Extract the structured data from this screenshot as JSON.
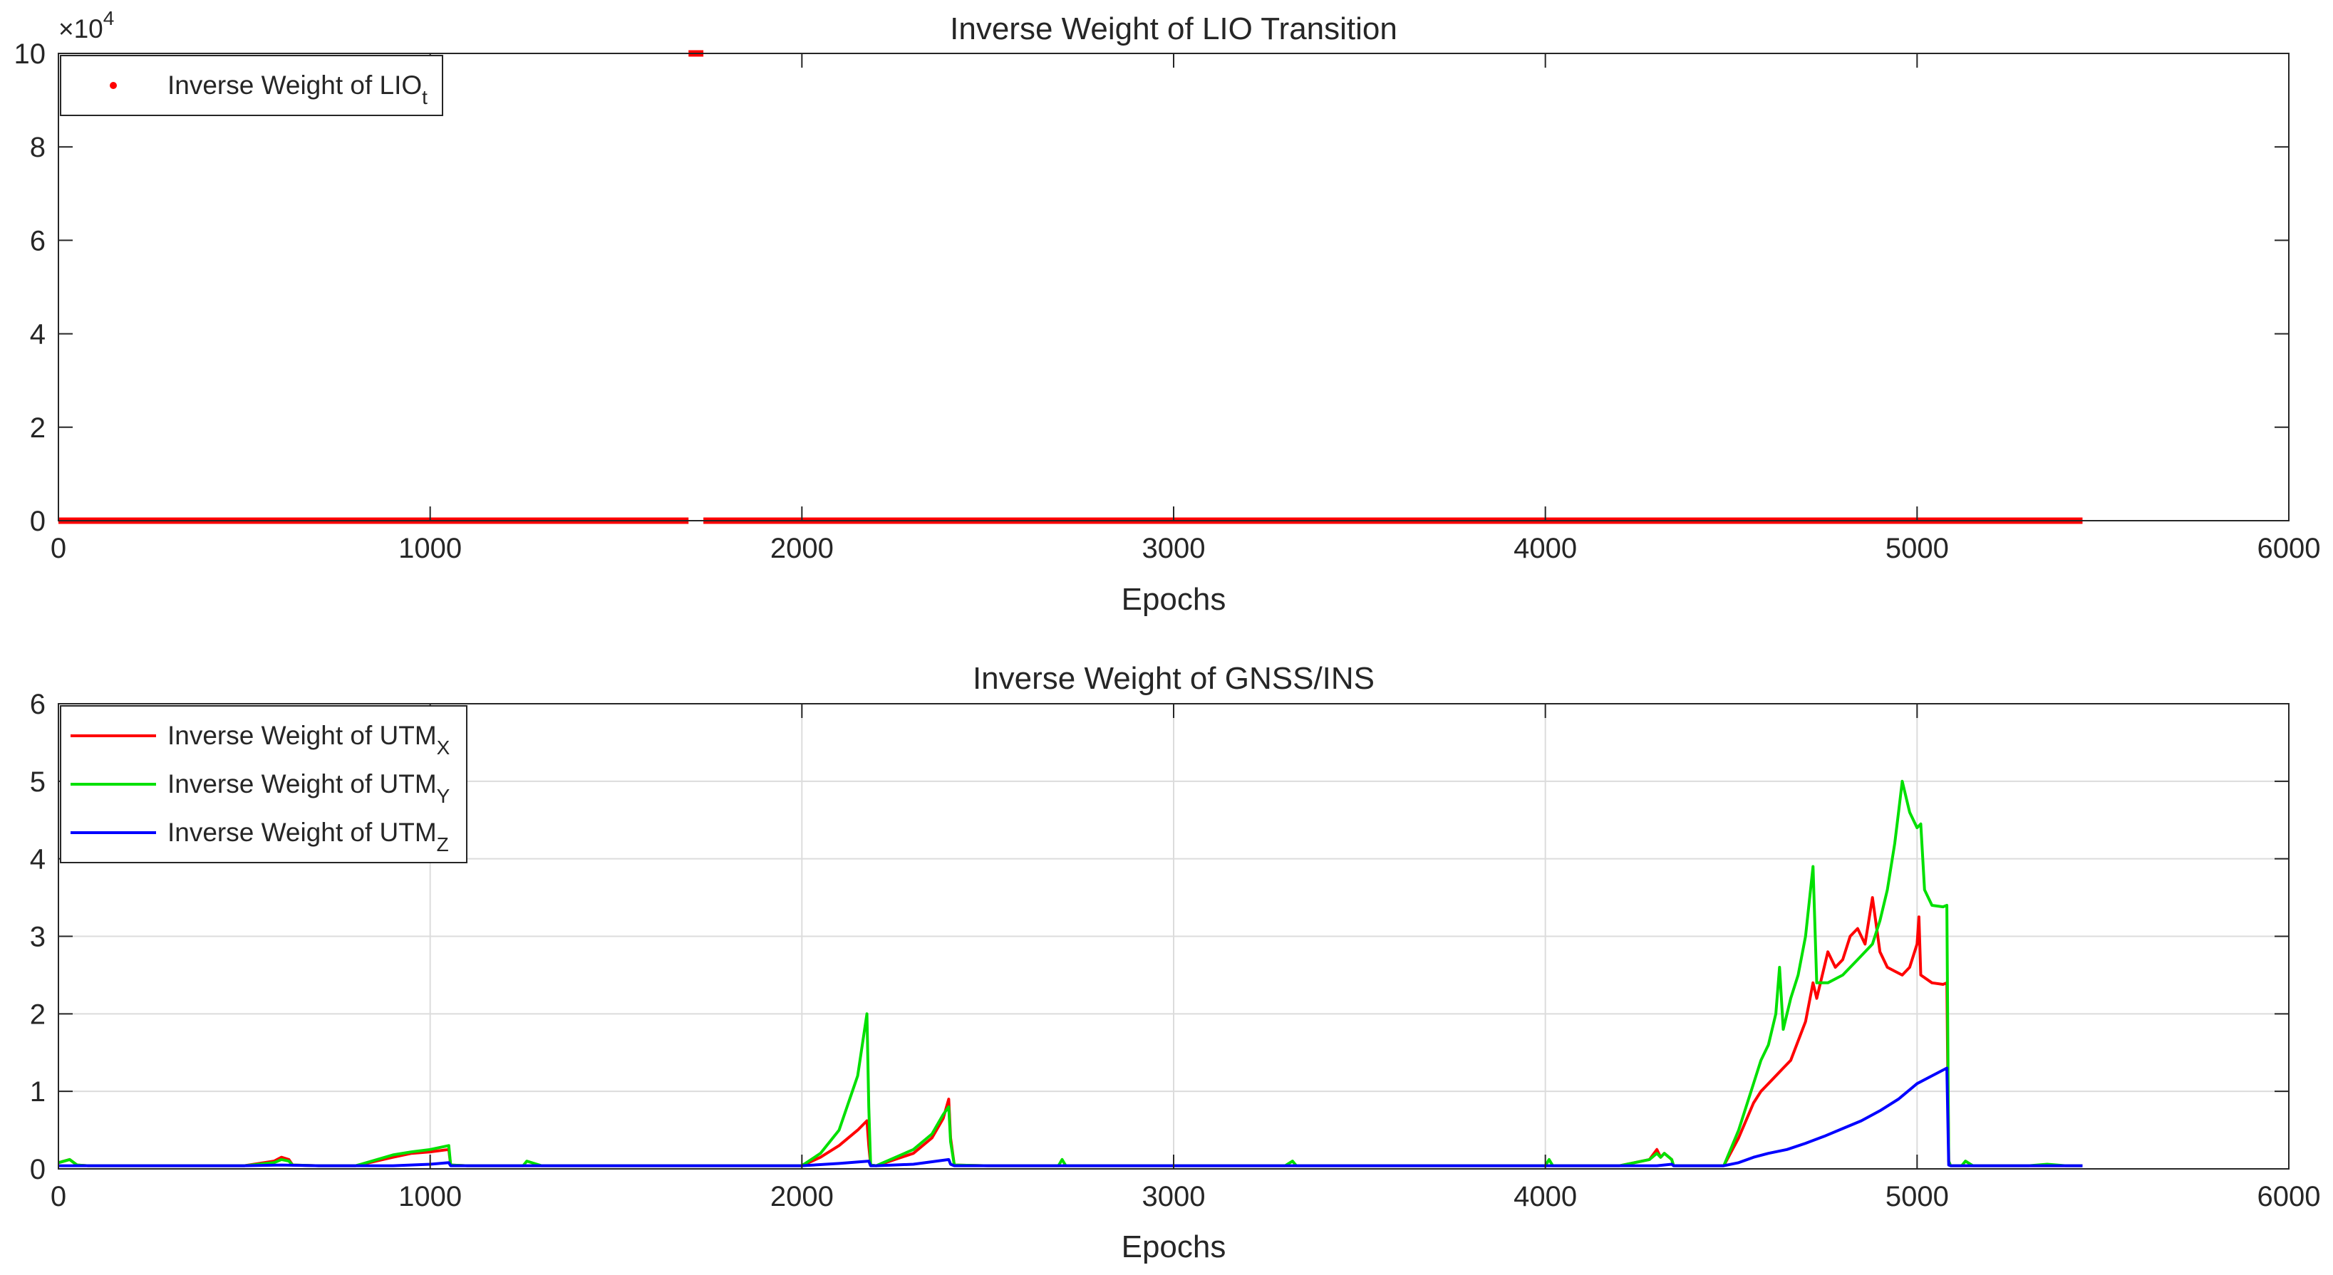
{
  "chart_data": [
    {
      "type": "scatter",
      "title": "Inverse Weight of LIO Transition",
      "xlabel": "Epochs",
      "ylabel": "",
      "xlim": [
        0,
        6000
      ],
      "ylim": [
        0,
        100000
      ],
      "x_ticks": [
        "0",
        "1000",
        "2000",
        "3000",
        "4000",
        "5000",
        "6000"
      ],
      "y_ticks": [
        "0",
        "2",
        "4",
        "6",
        "8",
        "10"
      ],
      "y_exponent_base": "×10",
      "y_exponent_power": "4",
      "grid": false,
      "legend_position": "top-left",
      "series": [
        {
          "name": "Inverse Weight of LIO",
          "name_subscript": "t",
          "color": "#ff0000",
          "segments": [
            {
              "x_start": 0,
              "x_end": 1695,
              "y": 0
            },
            {
              "x_start": 1695,
              "x_end": 1735,
              "y": 100000
            },
            {
              "x_start": 1735,
              "x_end": 5445,
              "y": 0
            }
          ]
        }
      ]
    },
    {
      "type": "line",
      "title": "Inverse Weight of GNSS/INS",
      "xlabel": "Epochs",
      "ylabel": "",
      "xlim": [
        0,
        6000
      ],
      "ylim": [
        0,
        6
      ],
      "x_ticks": [
        "0",
        "1000",
        "2000",
        "3000",
        "4000",
        "5000",
        "6000"
      ],
      "y_ticks": [
        "0",
        "1",
        "2",
        "3",
        "4",
        "5",
        "6"
      ],
      "grid": true,
      "legend_position": "top-left",
      "series": [
        {
          "name": "Inverse Weight of UTM",
          "name_subscript": "X",
          "color": "#ff0000",
          "x": [
            0,
            30,
            50,
            80,
            150,
            300,
            500,
            580,
            600,
            620,
            630,
            700,
            800,
            900,
            950,
            1000,
            1050,
            1055,
            1100,
            1300,
            1500,
            1800,
            2000,
            2050,
            2100,
            2150,
            2175,
            2180,
            2185,
            2200,
            2300,
            2350,
            2380,
            2395,
            2400,
            2410,
            2500,
            2700,
            3000,
            3300,
            3600,
            4000,
            4200,
            4280,
            4300,
            4310,
            4320,
            4340,
            4345,
            4360,
            4480,
            4520,
            4560,
            4580,
            4600,
            4640,
            4660,
            4700,
            4720,
            4730,
            4760,
            4780,
            4800,
            4820,
            4840,
            4860,
            4880,
            4900,
            4920,
            4940,
            4960,
            4980,
            5000,
            5005,
            5010,
            5040,
            5070,
            5080,
            5085,
            5090,
            5150,
            5200,
            5300,
            5400,
            5445
          ],
          "values": [
            0.08,
            0.12,
            0.05,
            0.04,
            0.04,
            0.04,
            0.04,
            0.1,
            0.15,
            0.12,
            0.05,
            0.04,
            0.04,
            0.15,
            0.2,
            0.22,
            0.25,
            0.05,
            0.04,
            0.04,
            0.04,
            0.04,
            0.04,
            0.15,
            0.3,
            0.5,
            0.62,
            0.3,
            0.05,
            0.04,
            0.2,
            0.4,
            0.65,
            0.9,
            0.4,
            0.05,
            0.04,
            0.04,
            0.04,
            0.04,
            0.04,
            0.04,
            0.04,
            0.12,
            0.25,
            0.15,
            0.2,
            0.12,
            0.04,
            0.04,
            0.04,
            0.4,
            0.85,
            1.0,
            1.1,
            1.3,
            1.4,
            1.9,
            2.4,
            2.2,
            2.8,
            2.6,
            2.7,
            3.0,
            3.1,
            2.9,
            3.5,
            2.8,
            2.6,
            2.55,
            2.5,
            2.6,
            2.9,
            3.25,
            2.5,
            2.4,
            2.38,
            2.4,
            0.1,
            0.04,
            0.04,
            0.04,
            0.04,
            0.04,
            0.04
          ]
        },
        {
          "name": "Inverse Weight of UTM",
          "name_subscript": "Y",
          "color": "#00e000",
          "x": [
            0,
            30,
            50,
            80,
            150,
            300,
            500,
            580,
            600,
            620,
            630,
            700,
            800,
            900,
            950,
            1000,
            1050,
            1055,
            1100,
            1250,
            1260,
            1300,
            1500,
            1800,
            2000,
            2050,
            2100,
            2150,
            2175,
            2180,
            2185,
            2200,
            2300,
            2350,
            2380,
            2395,
            2400,
            2410,
            2500,
            2690,
            2700,
            2710,
            3000,
            3300,
            3320,
            3330,
            3600,
            4000,
            4010,
            4020,
            4200,
            4280,
            4300,
            4310,
            4320,
            4340,
            4345,
            4360,
            4480,
            4520,
            4560,
            4580,
            4600,
            4620,
            4630,
            4640,
            4660,
            4680,
            4700,
            4720,
            4730,
            4760,
            4800,
            4840,
            4880,
            4900,
            4920,
            4940,
            4950,
            4960,
            4980,
            5000,
            5010,
            5020,
            5040,
            5070,
            5080,
            5085,
            5090,
            5120,
            5130,
            5150,
            5200,
            5300,
            5350,
            5400,
            5445
          ],
          "values": [
            0.08,
            0.12,
            0.05,
            0.04,
            0.04,
            0.04,
            0.04,
            0.08,
            0.12,
            0.1,
            0.05,
            0.04,
            0.04,
            0.18,
            0.22,
            0.25,
            0.3,
            0.05,
            0.04,
            0.04,
            0.1,
            0.04,
            0.04,
            0.04,
            0.04,
            0.2,
            0.5,
            1.2,
            2.0,
            0.8,
            0.05,
            0.04,
            0.25,
            0.45,
            0.7,
            0.8,
            0.35,
            0.05,
            0.04,
            0.04,
            0.12,
            0.04,
            0.04,
            0.04,
            0.1,
            0.04,
            0.04,
            0.04,
            0.12,
            0.04,
            0.04,
            0.12,
            0.2,
            0.15,
            0.2,
            0.12,
            0.04,
            0.04,
            0.04,
            0.5,
            1.1,
            1.4,
            1.6,
            2.0,
            2.6,
            1.8,
            2.2,
            2.5,
            3.0,
            3.9,
            2.4,
            2.4,
            2.5,
            2.7,
            2.9,
            3.2,
            3.6,
            4.2,
            4.6,
            5.0,
            4.6,
            4.4,
            4.45,
            3.6,
            3.4,
            3.38,
            3.4,
            0.1,
            0.04,
            0.04,
            0.1,
            0.04,
            0.04,
            0.04,
            0.06,
            0.04,
            0.04
          ]
        },
        {
          "name": "Inverse Weight of UTM",
          "name_subscript": "Z",
          "color": "#0000ff",
          "x": [
            0,
            300,
            500,
            600,
            700,
            900,
            1000,
            1050,
            1055,
            1100,
            1500,
            2000,
            2100,
            2180,
            2185,
            2200,
            2300,
            2395,
            2400,
            2410,
            2700,
            3000,
            3600,
            4000,
            4300,
            4340,
            4345,
            4360,
            4480,
            4520,
            4560,
            4600,
            4650,
            4700,
            4750,
            4800,
            4850,
            4900,
            4950,
            5000,
            5040,
            5080,
            5085,
            5090,
            5200,
            5445
          ],
          "values": [
            0.04,
            0.04,
            0.04,
            0.05,
            0.04,
            0.04,
            0.06,
            0.08,
            0.04,
            0.04,
            0.04,
            0.04,
            0.07,
            0.1,
            0.04,
            0.04,
            0.06,
            0.12,
            0.06,
            0.04,
            0.04,
            0.04,
            0.04,
            0.04,
            0.04,
            0.06,
            0.04,
            0.04,
            0.04,
            0.08,
            0.15,
            0.2,
            0.25,
            0.33,
            0.42,
            0.52,
            0.62,
            0.75,
            0.9,
            1.1,
            1.2,
            1.3,
            0.05,
            0.04,
            0.04,
            0.04
          ]
        }
      ]
    }
  ]
}
